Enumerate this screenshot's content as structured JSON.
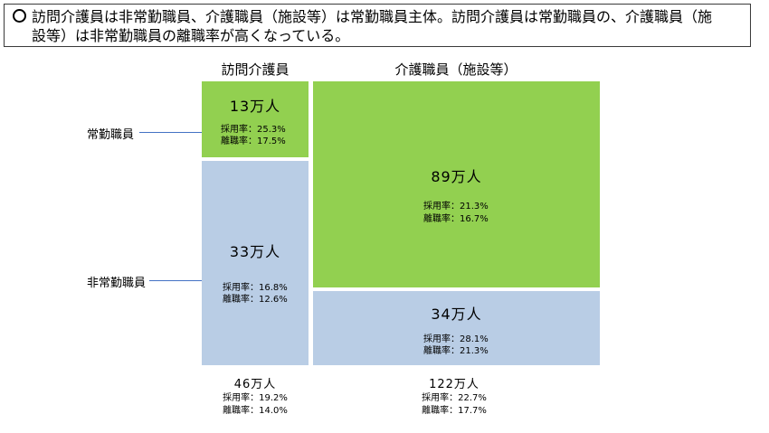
{
  "headline": {
    "line1": "訪問介護員は非常勤職員、介護職員（施設等）は常勤職員主体。訪問介護員は常勤職員の、介護職員（施",
    "line2": "設等）は非常勤職員の離職率が高くなっている。"
  },
  "chart_data": {
    "type": "mosaic",
    "title": "",
    "columns": [
      "訪問介護員",
      "介護職員（施設等）"
    ],
    "rows": [
      "常勤職員",
      "非常勤職員"
    ],
    "unit": "万人",
    "cells": [
      {
        "column": "訪問介護員",
        "row": "常勤職員",
        "count": 13,
        "count_label": "13万人",
        "hire_label": "採用率：25.3%",
        "leave_label": "離職率：17.5%",
        "hire_rate": 25.3,
        "leave_rate": 17.5
      },
      {
        "column": "訪問介護員",
        "row": "非常勤職員",
        "count": 33,
        "count_label": "33万人",
        "hire_label": "採用率：16.8%",
        "leave_label": "離職率：12.6%",
        "hire_rate": 16.8,
        "leave_rate": 12.6
      },
      {
        "column": "介護職員（施設等）",
        "row": "常勤職員",
        "count": 89,
        "count_label": "89万人",
        "hire_label": "採用率：21.3%",
        "leave_label": "離職率：16.7%",
        "hire_rate": 21.3,
        "leave_rate": 16.7
      },
      {
        "column": "介護職員（施設等）",
        "row": "非常勤職員",
        "count": 34,
        "count_label": "34万人",
        "hire_label": "採用率：28.1%",
        "leave_label": "離職率：21.3%",
        "hire_rate": 28.1,
        "leave_rate": 21.3
      }
    ],
    "totals": [
      {
        "column": "訪問介護員",
        "count": 46,
        "count_label": "46万人",
        "hire_label": "採用率：19.2%",
        "leave_label": "離職率：14.0%",
        "hire_rate": 19.2,
        "leave_rate": 14.0
      },
      {
        "column": "介護職員（施設等）",
        "count": 122,
        "count_label": "122万人",
        "hire_label": "採用率：22.7%",
        "leave_label": "離職率：17.7%",
        "hire_rate": 22.7,
        "leave_rate": 17.7
      }
    ],
    "colors": {
      "full_time": "#92d050",
      "part_time": "#b9cde5",
      "leader": "#4472c4"
    }
  }
}
